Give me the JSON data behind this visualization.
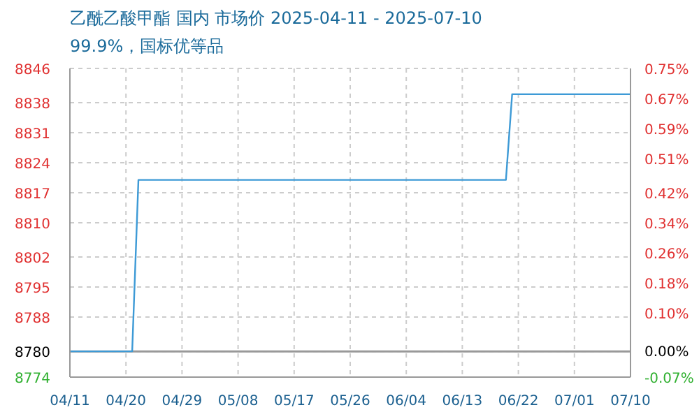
{
  "chart_data": {
    "type": "line",
    "title": "乙酰乙酸甲酯 国内 市场价 2025-04-11 - 2025-07-10",
    "subtitle": "99.9%，国标优等品",
    "x": [
      "2025-04-11",
      "2025-04-21",
      "2025-04-22",
      "2025-06-20",
      "2025-06-21",
      "2025-07-10"
    ],
    "series": [
      {
        "color": "#3d9ad6",
        "values": [
          8780,
          8780,
          8820,
          8820,
          8840,
          8840
        ]
      }
    ],
    "xlim": [
      "2025-04-11",
      "2025-07-10"
    ],
    "xticks": [
      {
        "value": "2025-04-11",
        "label": "04/11"
      },
      {
        "value": "2025-04-20",
        "label": "04/20"
      },
      {
        "value": "2025-04-29",
        "label": "04/29"
      },
      {
        "value": "2025-05-08",
        "label": "05/08"
      },
      {
        "value": "2025-05-17",
        "label": "05/17"
      },
      {
        "value": "2025-05-26",
        "label": "05/26"
      },
      {
        "value": "2025-06-04",
        "label": "06/04"
      },
      {
        "value": "2025-06-13",
        "label": "06/13"
      },
      {
        "value": "2025-06-22",
        "label": "06/22"
      },
      {
        "value": "2025-07-01",
        "label": "07/01"
      },
      {
        "value": "2025-07-10",
        "label": "07/10"
      }
    ],
    "ylim": [
      8774,
      8846
    ],
    "yticks": [
      8774,
      8780,
      8788,
      8795,
      8802,
      8810,
      8817,
      8824,
      8831,
      8838,
      8846
    ],
    "y2lim": [
      -0.07,
      0.75
    ],
    "y2ticks": [
      {
        "value": -0.07,
        "label": "-0.07%"
      },
      {
        "value": 0,
        "label": "0.00%"
      },
      {
        "value": 0.1,
        "label": "0.10%"
      },
      {
        "value": 0.18,
        "label": "0.18%"
      },
      {
        "value": 0.26,
        "label": "0.26%"
      },
      {
        "value": 0.34,
        "label": "0.34%"
      },
      {
        "value": 0.42,
        "label": "0.42%"
      },
      {
        "value": 0.51,
        "label": "0.51%"
      },
      {
        "value": 0.59,
        "label": "0.59%"
      },
      {
        "value": 0.67,
        "label": "0.67%"
      },
      {
        "value": 0.75,
        "label": "0.75%"
      }
    ],
    "ref_lines": [
      {
        "axis": "y",
        "value": 8780,
        "color": "#999999"
      }
    ],
    "grid": true,
    "marker": "none",
    "line_style": "solid"
  }
}
